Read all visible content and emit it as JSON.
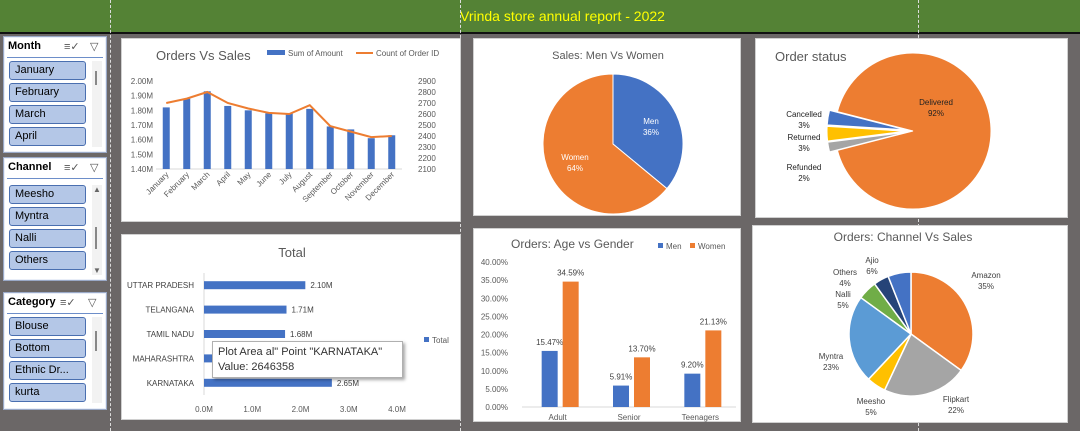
{
  "report": {
    "title": "Vrinda store annual report - 2022"
  },
  "slicers": [
    {
      "title": "Month",
      "items": [
        "January",
        "February",
        "March",
        "April"
      ]
    },
    {
      "title": "Channel",
      "items": [
        "Meesho",
        "Myntra",
        "Nalli",
        "Others"
      ]
    },
    {
      "title": "Category",
      "items": [
        "Blouse",
        "Bottom",
        "Ethnic Dr...",
        "kurta"
      ]
    }
  ],
  "icons": {
    "multi_select": "multi-select-icon",
    "clear_filter": "clear-filter-icon"
  },
  "colors": {
    "blue": "#4472c4",
    "orange": "#ed7d31",
    "gray": "#a5a5a5",
    "yellow": "#ffc000",
    "green": "#70ad47",
    "navy": "#264478",
    "banner": "#548235",
    "banner_text": "#ffff00"
  },
  "tooltip": {
    "line1": "Plot Area   al\" Point \"KARNATAKA\"",
    "line2": "Value: 2646358"
  },
  "chart_data": [
    {
      "id": "orders-vs-sales",
      "type": "bar",
      "title": "Orders Vs Sales",
      "categories": [
        "January",
        "February",
        "March",
        "April",
        "May",
        "June",
        "July",
        "August",
        "September",
        "October",
        "November",
        "December"
      ],
      "series": [
        {
          "name": "Sum of Amount",
          "kind": "bar",
          "axis": "left",
          "values": [
            1.82,
            1.88,
            1.93,
            1.83,
            1.8,
            1.78,
            1.78,
            1.81,
            1.69,
            1.67,
            1.61,
            1.63
          ]
        },
        {
          "name": "Count of Order ID",
          "kind": "line",
          "axis": "right",
          "values": [
            2700,
            2740,
            2800,
            2700,
            2650,
            2610,
            2600,
            2680,
            2490,
            2440,
            2390,
            2400
          ]
        }
      ],
      "left_axis": {
        "ylim": [
          1.4,
          2.0
        ],
        "ticks": [
          "1.40M",
          "1.50M",
          "1.60M",
          "1.70M",
          "1.80M",
          "1.90M",
          "2.00M"
        ]
      },
      "right_axis": {
        "ylim": [
          2100,
          2900
        ],
        "ticks": [
          "2100",
          "2200",
          "2300",
          "2400",
          "2500",
          "2600",
          "2700",
          "2800",
          "2900"
        ]
      }
    },
    {
      "id": "sales-men-women",
      "type": "pie",
      "title": "Sales: Men Vs Women",
      "slices": [
        {
          "label": "Men",
          "value": 36,
          "text": "36%"
        },
        {
          "label": "Women",
          "value": 64,
          "text": "64%"
        }
      ]
    },
    {
      "id": "order-status",
      "type": "pie",
      "title": "Order status",
      "slices": [
        {
          "label": "Delivered",
          "value": 92,
          "text": "92%"
        },
        {
          "label": "Refunded",
          "value": 2,
          "text": "2%"
        },
        {
          "label": "Returned",
          "value": 3,
          "text": "3%"
        },
        {
          "label": "Cancelled",
          "value": 3,
          "text": "3%"
        }
      ]
    },
    {
      "id": "top-states",
      "type": "bar",
      "title": "Total",
      "orientation": "horizontal",
      "categories": [
        "UTTAR PRADESH",
        "TELANGANA",
        "TAMIL NADU",
        "MAHARASHTRA",
        "KARNATAKA"
      ],
      "values": [
        2.1,
        1.71,
        1.68,
        2.99,
        2.65
      ],
      "value_labels": [
        "2.10M",
        "1.71M",
        "1.68M",
        "",
        "2.65M"
      ],
      "legend": [
        "Total"
      ],
      "xlim": [
        0,
        4
      ],
      "ticks": [
        "0.0M",
        "1.0M",
        "2.0M",
        "3.0M",
        "4.0M"
      ]
    },
    {
      "id": "age-vs-gender",
      "type": "bar",
      "title": "Orders: Age vs Gender",
      "categories": [
        "Adult",
        "Senior",
        "Teenagers"
      ],
      "series": [
        {
          "name": "Men",
          "values": [
            15.47,
            5.91,
            9.2
          ],
          "labels": [
            "15.47%",
            "5.91%",
            "9.20%"
          ]
        },
        {
          "name": "Women",
          "values": [
            34.59,
            13.7,
            21.13
          ],
          "labels": [
            "34.59%",
            "13.70%",
            "21.13%"
          ]
        }
      ],
      "ylim": [
        0,
        40
      ],
      "ticks": [
        "0.00%",
        "5.00%",
        "10.00%",
        "15.00%",
        "20.00%",
        "25.00%",
        "30.00%",
        "35.00%",
        "40.00%"
      ]
    },
    {
      "id": "channel-vs-sales",
      "type": "pie",
      "title": "Orders: Channel Vs Sales",
      "slices": [
        {
          "label": "Amazon",
          "value": 35,
          "text": "35%"
        },
        {
          "label": "Flipkart",
          "value": 22,
          "text": "22%"
        },
        {
          "label": "Meesho",
          "value": 5,
          "text": "5%"
        },
        {
          "label": "Myntra",
          "value": 23,
          "text": "23%"
        },
        {
          "label": "Nalli",
          "value": 5,
          "text": "5%"
        },
        {
          "label": "Others",
          "value": 4,
          "text": "4%"
        },
        {
          "label": "Ajio",
          "value": 6,
          "text": "6%"
        }
      ]
    }
  ]
}
